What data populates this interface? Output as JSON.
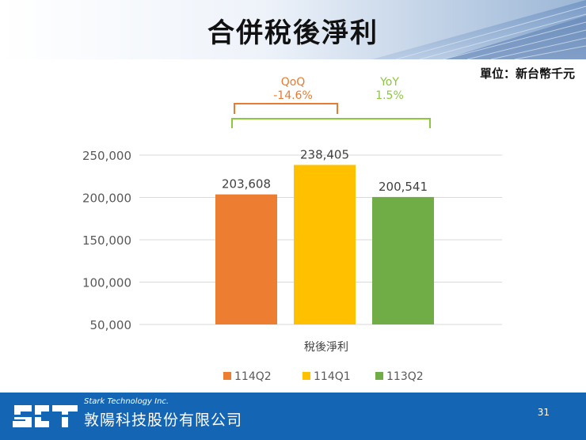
{
  "page": {
    "title": "合併稅後淨利",
    "unit": "單位：新台幣千元",
    "page_number": "31"
  },
  "annotations": {
    "qoq_label": "QoQ",
    "qoq_value": "-14.6%",
    "yoy_label": "YoY",
    "yoy_value": "1.5%"
  },
  "footer": {
    "company_en": "Stark Technology Inc.",
    "company_zh": "敦陽科技股份有限公司"
  },
  "colors": {
    "114Q2": "#ED7D31",
    "114Q1": "#FFC000",
    "113Q2": "#70AD47",
    "qoq": "#E87A33",
    "yoy": "#8DC63F",
    "footer": "#1565B5"
  },
  "chart_data": {
    "type": "bar",
    "xlabel": "稅後淨利",
    "ylim": [
      50000,
      250000
    ],
    "yticks": [
      "50,000",
      "100,000",
      "150,000",
      "200,000",
      "250,000"
    ],
    "ytick_values": [
      50000,
      100000,
      150000,
      200000,
      250000
    ],
    "grid": true,
    "legend_position": "bottom",
    "series": [
      {
        "name": "114Q2",
        "value": 203608,
        "label": "203,608",
        "color": "#ED7D31"
      },
      {
        "name": "114Q1",
        "value": 238405,
        "label": "238,405",
        "color": "#FFC000"
      },
      {
        "name": "113Q2",
        "value": 200541,
        "label": "200,541",
        "color": "#70AD47"
      }
    ]
  }
}
